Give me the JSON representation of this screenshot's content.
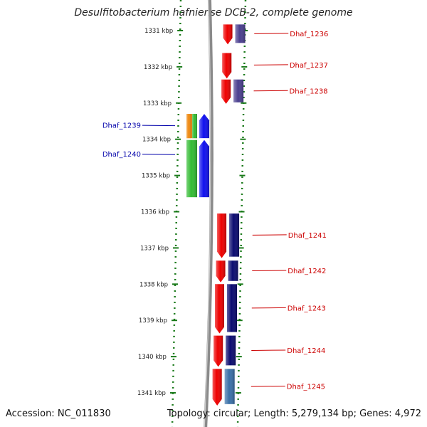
{
  "title": "Desulfitobacterium hafniense DCB-2, complete genome",
  "footer": {
    "accession": "Accession: NC_011830",
    "topology": "Topology: circular; Length: 5,279,134 bp; Genes: 4,972"
  },
  "colors": {
    "background": "#ffffff",
    "tick": "#1a7a1a",
    "backbone": "#8a8a8a",
    "label_forward": "#cc0000",
    "label_reverse": "#0000aa"
  },
  "axis": {
    "unit": "kbp",
    "ticks": [
      {
        "kbp": 1331,
        "label": "1331 kbp"
      },
      {
        "kbp": 1332,
        "label": "1332 kbp"
      },
      {
        "kbp": 1333,
        "label": "1333 kbp"
      },
      {
        "kbp": 1334,
        "label": "1334 kbp"
      },
      {
        "kbp": 1335,
        "label": "1335 kbp"
      },
      {
        "kbp": 1336,
        "label": "1336 kbp"
      },
      {
        "kbp": 1337,
        "label": "1337 kbp"
      },
      {
        "kbp": 1338,
        "label": "1338 kbp"
      },
      {
        "kbp": 1339,
        "label": "1339 kbp"
      },
      {
        "kbp": 1340,
        "label": "1340 kbp"
      },
      {
        "kbp": 1341,
        "label": "1341 kbp"
      }
    ]
  },
  "genes_forward": [
    {
      "name": "Dhaf_1236",
      "start": 1330.83,
      "end": 1331.38,
      "inner_color": "#ee0000",
      "outer_color": "#4a3f8f"
    },
    {
      "name": "Dhaf_1237",
      "start": 1331.62,
      "end": 1332.32,
      "inner_color": "#ee0000",
      "outer_color": ""
    },
    {
      "name": "Dhaf_1238",
      "start": 1332.35,
      "end": 1333.02,
      "inner_color": "#ee0000",
      "outer_color": "#4a3f8f"
    },
    {
      "name": "Dhaf_1241",
      "start": 1336.05,
      "end": 1337.28,
      "inner_color": "#ee0000",
      "outer_color": "#0a0a70"
    },
    {
      "name": "Dhaf_1242",
      "start": 1337.35,
      "end": 1337.95,
      "inner_color": "#ee0000",
      "outer_color": "#0a0a70"
    },
    {
      "name": "Dhaf_1243",
      "start": 1338.0,
      "end": 1339.36,
      "inner_color": "#ee0000",
      "outer_color": "#0a0a70"
    },
    {
      "name": "Dhaf_1244",
      "start": 1339.42,
      "end": 1340.28,
      "inner_color": "#ee0000",
      "outer_color": "#0a0a70"
    },
    {
      "name": "Dhaf_1245",
      "start": 1340.34,
      "end": 1341.35,
      "inner_color": "#ee0000",
      "outer_color": "#3a70a8"
    }
  ],
  "genes_reverse": [
    {
      "name": "Dhaf_1239",
      "start": 1333.3,
      "end": 1333.97,
      "inner_color": "#1010ee",
      "outer_color": "#f08a10"
    },
    {
      "name": "Dhaf_1240",
      "start": 1334.02,
      "end": 1335.6,
      "inner_color": "#1010ee",
      "outer_color": "#33bb33"
    }
  ]
}
